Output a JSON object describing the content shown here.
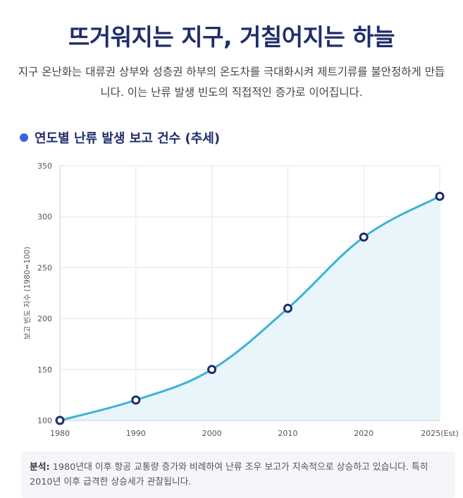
{
  "header": {
    "title": "뜨거워지는 지구, 거칠어지는 하늘",
    "subtitle": "지구 온난화는 대류권 상부와 성층권 하부의 온도차를 극대화시켜 제트기류를 불안정하게 만듭니다. 이는 난류 발생 빈도의 직접적인 증가로 이어집니다."
  },
  "section": {
    "title": "연도별 난류 발생 보고 건수 (추세)"
  },
  "colors": {
    "line": "#3db3d3",
    "fill": "#e8f6fc",
    "marker": "#1f2d6b",
    "accent": "#3a62e0"
  },
  "chart_data": {
    "type": "area",
    "title": "연도별 난류 발생 보고 건수 (추세)",
    "xlabel": "",
    "ylabel": "보고 빈도 지수 (1980=100)",
    "categories": [
      "1980",
      "1990",
      "2000",
      "2010",
      "2020",
      "2025(Est)"
    ],
    "values": [
      100,
      120,
      150,
      210,
      280,
      320
    ],
    "ylim": [
      100,
      350
    ],
    "yticks": [
      "100",
      "150",
      "200",
      "250",
      "300",
      "350"
    ],
    "grid": true
  },
  "note": {
    "label": "분석:",
    "text": "1980년대 이후 항공 교통량 증가와 비례하여 난류 조우 보고가 지속적으로 상승하고 있습니다. 특히 2010년 이후 급격한 상승세가 관찰됩니다."
  }
}
